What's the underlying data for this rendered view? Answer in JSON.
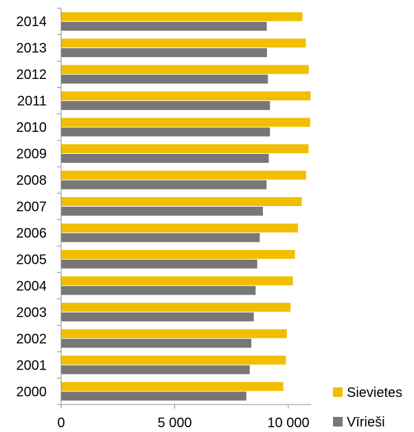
{
  "chart_data": {
    "type": "bar",
    "orientation": "horizontal",
    "categories": [
      "2014",
      "2013",
      "2012",
      "2011",
      "2010",
      "2009",
      "2008",
      "2007",
      "2006",
      "2005",
      "2004",
      "2003",
      "2002",
      "2001",
      "2000"
    ],
    "series": [
      {
        "name": "Sievietes",
        "color": "#F2BE00",
        "values": [
          10620,
          10770,
          10900,
          10980,
          10960,
          10890,
          10780,
          10590,
          10420,
          10290,
          10200,
          10100,
          9930,
          9890,
          9780
        ]
      },
      {
        "name": "Vīrieši",
        "color": "#777777",
        "values": [
          9050,
          9060,
          9100,
          9190,
          9190,
          9140,
          9040,
          8880,
          8740,
          8630,
          8560,
          8480,
          8370,
          8300,
          8150
        ]
      }
    ],
    "xlim": [
      0,
      11000
    ],
    "xticks": [
      0,
      5000,
      10000
    ],
    "xtick_labels": [
      "0",
      "5 000",
      "10 000"
    ],
    "grid": false,
    "legend_position": "bottom-right"
  }
}
